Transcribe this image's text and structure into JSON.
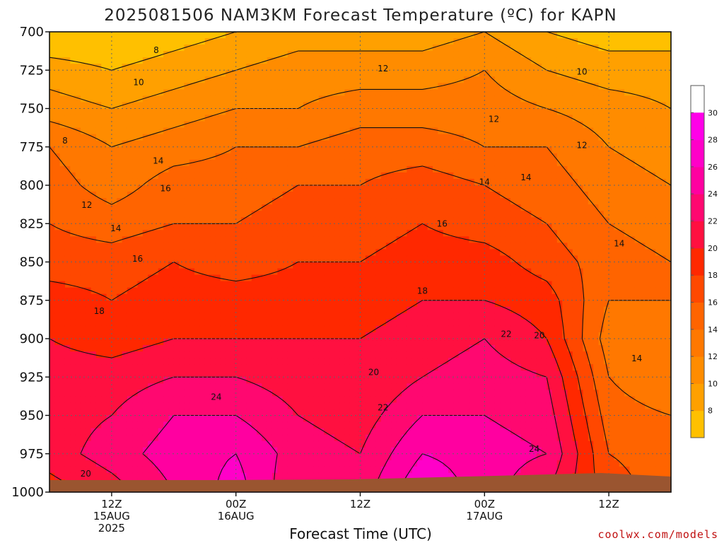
{
  "title": "2025081506 NAM3KM Forecast Temperature (ºC) for KAPN",
  "xlabel": "Forecast Time (UTC)",
  "credit": "coolwx.com/models",
  "x_ticks": [
    {
      "hours": 6,
      "lines": [
        "12Z",
        "15AUG",
        "2025"
      ]
    },
    {
      "hours": 18,
      "lines": [
        "00Z",
        "16AUG"
      ]
    },
    {
      "hours": 30,
      "lines": [
        "12Z"
      ]
    },
    {
      "hours": 42,
      "lines": [
        "00Z",
        "17AUG"
      ]
    },
    {
      "hours": 54,
      "lines": [
        "12Z"
      ]
    }
  ],
  "colors": {
    "fill_scale": [
      "#ffc000",
      "#ffa000",
      "#ff8c00",
      "#ff7800",
      "#ff6400",
      "#ff4800",
      "#ff2800",
      "#ff1040",
      "#ff0870",
      "#ff00a0",
      "#ff00c8",
      "#ff00e8"
    ],
    "ground": "#9a5530",
    "axis": "#111111",
    "grid": "#666666",
    "contour": "#111111"
  },
  "chart_data": {
    "type": "heatmap",
    "title": "2025081506 NAM3KM Forecast Temperature (ºC) for KAPN",
    "xlabel": "Forecast Time (UTC)",
    "ylabel": "",
    "x_units": "forecast hours from 2025-08-15 06Z",
    "xlim": [
      0,
      60
    ],
    "y_units": "pressure (hPa)",
    "ylim": [
      1000,
      700
    ],
    "y_ticks": [
      700,
      725,
      750,
      775,
      800,
      825,
      850,
      875,
      900,
      925,
      950,
      975,
      1000
    ],
    "colorbar_ticks": [
      8,
      10,
      12,
      14,
      16,
      18,
      20,
      22,
      24,
      26,
      28,
      30
    ],
    "colorbar_range": [
      6,
      32
    ],
    "contour_interval": 2,
    "grid": true,
    "times": [
      0,
      6,
      12,
      18,
      24,
      30,
      36,
      42,
      48,
      54,
      60
    ],
    "levels": [
      700,
      725,
      750,
      775,
      800,
      825,
      850,
      875,
      900,
      925,
      950,
      975,
      1000
    ],
    "temperature_c": [
      [
        6,
        9,
        11,
        14,
        15,
        16,
        17,
        19,
        20,
        21,
        21,
        21,
        19
      ],
      [
        6,
        8,
        10,
        12,
        13,
        15,
        17,
        18,
        19,
        21,
        22,
        23,
        21
      ],
      [
        7,
        9,
        11,
        13,
        15,
        16,
        18,
        19,
        20,
        22,
        24,
        25,
        24
      ],
      [
        8,
        10,
        12,
        14,
        15,
        16,
        17,
        19,
        20,
        22,
        24,
        26,
        27
      ],
      [
        9,
        11,
        12,
        14,
        16,
        17,
        18,
        19,
        20,
        21,
        22,
        23,
        22
      ],
      [
        9,
        11,
        13,
        15,
        16,
        17,
        18,
        19,
        20,
        20,
        21,
        22,
        23
      ],
      [
        9,
        11,
        13,
        15,
        17,
        18,
        19,
        20,
        21,
        22,
        24,
        26,
        28
      ],
      [
        10,
        12,
        13,
        14,
        16,
        17,
        19,
        20,
        22,
        23,
        24,
        25,
        25
      ],
      [
        8,
        10,
        12,
        14,
        15,
        16,
        17,
        19,
        20,
        22,
        23,
        24,
        22
      ],
      [
        7,
        9,
        11,
        12,
        13,
        14,
        15,
        14,
        13,
        14,
        15,
        16,
        17
      ],
      [
        7,
        9,
        10,
        11,
        12,
        13,
        14,
        14,
        13,
        12,
        14,
        15,
        15
      ]
    ],
    "contour_labels": [
      {
        "value": "8",
        "time": 10.3,
        "level": 712
      },
      {
        "value": "8",
        "time": 1.5,
        "level": 771
      },
      {
        "value": "10",
        "time": 8.6,
        "level": 733
      },
      {
        "value": "10",
        "time": 51.4,
        "level": 726
      },
      {
        "value": "12",
        "time": 3.6,
        "level": 813
      },
      {
        "value": "12",
        "time": 32.2,
        "level": 724
      },
      {
        "value": "12",
        "time": 42.9,
        "level": 757
      },
      {
        "value": "12",
        "time": 51.4,
        "level": 774
      },
      {
        "value": "14",
        "time": 6.4,
        "level": 828
      },
      {
        "value": "14",
        "time": 10.5,
        "level": 784
      },
      {
        "value": "14",
        "time": 42.0,
        "level": 798
      },
      {
        "value": "14",
        "time": 46.0,
        "level": 795
      },
      {
        "value": "14",
        "time": 55.0,
        "level": 838
      },
      {
        "value": "14",
        "time": 56.7,
        "level": 913
      },
      {
        "value": "16",
        "time": 8.5,
        "level": 848
      },
      {
        "value": "16",
        "time": 11.2,
        "level": 802
      },
      {
        "value": "16",
        "time": 37.9,
        "level": 825
      },
      {
        "value": "18",
        "time": 4.8,
        "level": 882
      },
      {
        "value": "18",
        "time": 36.0,
        "level": 869
      },
      {
        "value": "20",
        "time": 3.5,
        "level": 988
      },
      {
        "value": "20",
        "time": 31.3,
        "level": 922
      },
      {
        "value": "20",
        "time": 47.3,
        "level": 898
      },
      {
        "value": "22",
        "time": 32.2,
        "level": 945
      },
      {
        "value": "22",
        "time": 44.1,
        "level": 897
      },
      {
        "value": "24",
        "time": 16.1,
        "level": 938
      },
      {
        "value": "24",
        "time": 46.8,
        "level": 972
      }
    ]
  }
}
